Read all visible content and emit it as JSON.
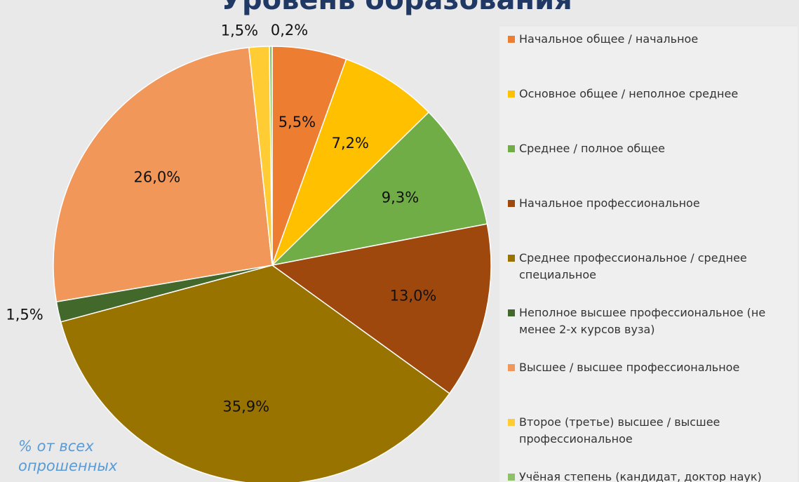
{
  "chart_data": {
    "type": "pie",
    "title": "Уровень образования",
    "annotation": "% от всех опрошенных",
    "categories": [
      "Начальное общее / начальное",
      "Основное общее / неполное среднее",
      "Среднее / полное общее",
      "Начальное профессиональное",
      "Среднее профессиональное / среднее специальное",
      "Неполное высшее профессиональное (не менее 2-х курсов вуза)",
      "Высшее / высшее профессиональное",
      "Второе (третье) высшее / высшее профессиональное",
      "Учёная степень (кандидат, доктор наук)"
    ],
    "values": [
      5.5,
      7.2,
      9.3,
      13.0,
      35.9,
      1.5,
      26.0,
      1.5,
      0.2
    ],
    "value_labels": [
      "5,5%",
      "7,2%",
      "9,3%",
      "13,0%",
      "35,9%",
      "1,5%",
      "26,0%",
      "1,5%",
      "0,2%"
    ],
    "colors": [
      "#ed7d31",
      "#ffc000",
      "#70ad47",
      "#9e480e",
      "#997300",
      "#43682b",
      "#f1975a",
      "#ffcd33",
      "#8cc168"
    ],
    "legend": "right"
  }
}
